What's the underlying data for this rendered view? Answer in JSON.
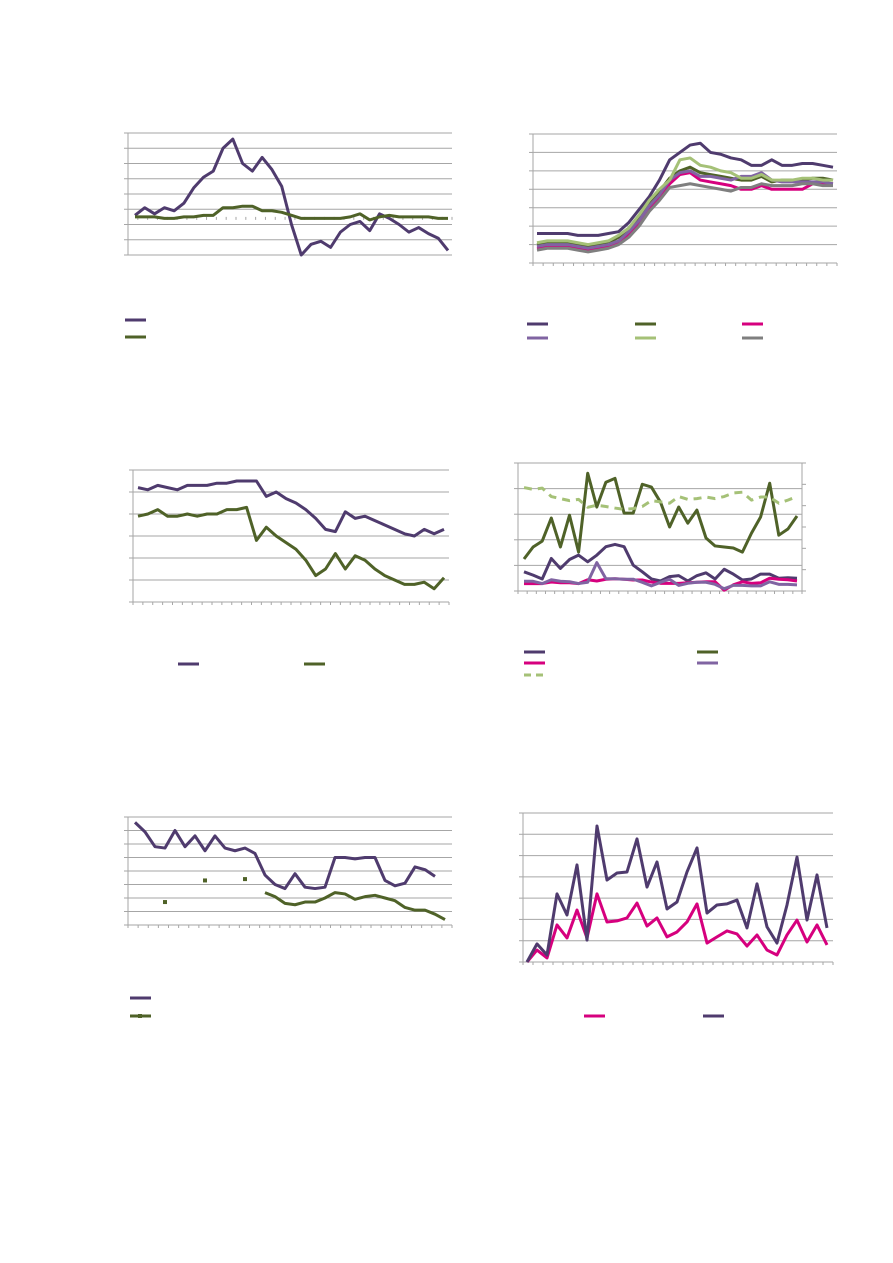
{
  "colors": {
    "purple": "#4f3b6e",
    "dark_green": "#4f6228",
    "magenta": "#d6007e",
    "light_purple": "#8064a2",
    "light_green": "#a5c177",
    "gray": "#7f7f7f",
    "grid": "#a6a6a6"
  },
  "chart_data": [
    {
      "type": "line",
      "ylim": [
        0,
        8
      ],
      "grid": true,
      "legend": "bottom-left",
      "series": [
        {
          "color": "#4f3b6e",
          "values": [
            2.6,
            3.1,
            2.7,
            3.1,
            2.9,
            3.4,
            4.4,
            5.1,
            5.5,
            7.0,
            7.6,
            6.0,
            5.5,
            6.4,
            5.6,
            4.5,
            2.0,
            0,
            0.7,
            0.9,
            0.5,
            1.5,
            2.0,
            2.2,
            1.6,
            2.7,
            2.4,
            2.0,
            1.5,
            1.8,
            1.4,
            1.1,
            0.3
          ]
        },
        {
          "color": "#4f6228",
          "values": [
            2.5,
            2.5,
            2.5,
            2.4,
            2.4,
            2.5,
            2.5,
            2.6,
            2.6,
            3.1,
            3.1,
            3.2,
            3.2,
            2.9,
            2.9,
            2.8,
            2.6,
            2.4,
            2.4,
            2.4,
            2.4,
            2.4,
            2.5,
            2.7,
            2.3,
            2.5,
            2.6,
            2.5,
            2.5,
            2.5,
            2.5,
            2.4,
            2.4
          ]
        }
      ]
    },
    {
      "type": "line",
      "ylim": [
        0,
        70
      ],
      "grid": true,
      "legend": "bottom",
      "series": [
        {
          "color": "#4f3b6e",
          "values": [
            16,
            16,
            16,
            16,
            15,
            15,
            15,
            16,
            17,
            22,
            29,
            36,
            45,
            56,
            60,
            64,
            65,
            60,
            59,
            57,
            56,
            53,
            53,
            56,
            53,
            53,
            54,
            54,
            53,
            52
          ]
        },
        {
          "color": "#4f6228",
          "values": [
            10,
            11,
            11,
            11,
            10,
            9,
            10,
            11,
            14,
            18,
            24,
            32,
            39,
            46,
            50,
            52,
            49,
            48,
            47,
            46,
            45,
            45,
            47,
            44,
            45,
            45,
            45,
            46,
            46,
            45
          ]
        },
        {
          "color": "#d6007e",
          "values": [
            8,
            9,
            9,
            9,
            8,
            7,
            8,
            9,
            11,
            16,
            22,
            30,
            36,
            43,
            48,
            49,
            45,
            44,
            43,
            42,
            40,
            40,
            42,
            40,
            40,
            40,
            40,
            43,
            43,
            43
          ]
        },
        {
          "color": "#8064a2",
          "values": [
            9,
            10,
            10,
            10,
            9,
            8,
            9,
            10,
            12,
            17,
            23,
            31,
            37,
            45,
            49,
            50,
            47,
            47,
            46,
            45,
            47,
            47,
            49,
            45,
            44,
            44,
            44,
            44,
            44,
            43
          ]
        },
        {
          "color": "#a5c177",
          "values": [
            11,
            12,
            12,
            12,
            11,
            10,
            11,
            12,
            15,
            19,
            26,
            34,
            40,
            45,
            56,
            57,
            53,
            52,
            50,
            49,
            46,
            46,
            48,
            45,
            45,
            45,
            46,
            46,
            45,
            45
          ]
        },
        {
          "color": "#7f7f7f",
          "values": [
            7,
            8,
            8,
            8,
            7,
            6,
            7,
            8,
            10,
            14,
            20,
            28,
            34,
            41,
            42,
            43,
            42,
            41,
            40,
            39,
            41,
            41,
            43,
            42,
            42,
            42,
            43,
            43,
            42,
            42
          ]
        }
      ]
    },
    {
      "type": "line",
      "ylim": [
        0,
        60
      ],
      "grid": true,
      "legend": "bottom",
      "series": [
        {
          "color": "#4f3b6e",
          "values": [
            52,
            51,
            53,
            52,
            51,
            53,
            53,
            53,
            54,
            54,
            55,
            55,
            55,
            48,
            50,
            47,
            45,
            42,
            38,
            33,
            32,
            41,
            38,
            39,
            37,
            35,
            33,
            31,
            30,
            33,
            31,
            33
          ]
        },
        {
          "color": "#4f6228",
          "values": [
            39,
            40,
            42,
            39,
            39,
            40,
            39,
            40,
            40,
            42,
            42,
            43,
            28,
            34,
            30,
            27,
            24,
            19,
            12,
            15,
            22,
            15,
            21,
            19,
            15,
            12,
            10,
            8,
            8,
            9,
            6,
            11
          ]
        }
      ]
    },
    {
      "type": "line",
      "ylim": [
        0,
        50
      ],
      "grid": true,
      "legend": "bottom-left",
      "series": [
        {
          "color": "#4f3b6e",
          "values": [
            7.5,
            6.2,
            4.7,
            12.7,
            8.8,
            12.3,
            14.0,
            11.4,
            14.0,
            17.3,
            18.2,
            17.3,
            10.1,
            7.5,
            4.7,
            3.9,
            5.6,
            6.0,
            3.9,
            6.0,
            7.1,
            4.7,
            8.5,
            6.6,
            4.3,
            4.7,
            6.6,
            6.6,
            5.0,
            5.2,
            5.0
          ]
        },
        {
          "color": "#4f6228",
          "values": [
            12.5,
            17.2,
            19.5,
            28.5,
            17.2,
            29.6,
            15.2,
            46,
            32.8,
            42.5,
            44,
            30.4,
            30.4,
            41.7,
            40.6,
            34.7,
            25,
            32.8,
            26.5,
            31.6,
            20.7,
            17.6,
            17.2,
            16.8,
            15.2,
            22.6,
            28.9,
            42.1,
            21.8,
            24.2,
            29.3
          ]
        },
        {
          "color": "#d6007e",
          "values": [
            2.9,
            2.9,
            2.9,
            3.5,
            3.2,
            3.2,
            2.9,
            4.4,
            3.9,
            4.6,
            4.8,
            4.6,
            4.3,
            4.3,
            3.5,
            3.0,
            3.0,
            3.0,
            3.2,
            3.4,
            3.6,
            3.6,
            0.3,
            2.4,
            3.6,
            3.0,
            3.2,
            5.0,
            4.6,
            4.4,
            3.9
          ]
        },
        {
          "color": "#8064a2",
          "values": [
            3.8,
            3.8,
            2.9,
            4.4,
            3.8,
            3.6,
            2.9,
            3.4,
            11.1,
            4.8,
            4.8,
            4.6,
            4.6,
            3.4,
            2.0,
            3.4,
            4.6,
            2.2,
            3.0,
            3.4,
            3.4,
            2.6,
            0.9,
            2.2,
            2.2,
            2.0,
            2.0,
            3.6,
            2.6,
            2.6,
            2.4
          ]
        },
        {
          "color": "#a5c177",
          "dashed": true,
          "values": [
            40.4,
            39.7,
            40.2,
            36.9,
            36.1,
            35.3,
            35.8,
            32.7,
            33.5,
            33.0,
            32.4,
            31.9,
            32.2,
            33.0,
            35.3,
            34.8,
            34.3,
            36.9,
            35.8,
            36.1,
            36.7,
            36.1,
            36.9,
            38.3,
            38.6,
            35.5,
            36.7,
            36.7,
            34.3,
            35.5,
            36.9
          ]
        }
      ]
    },
    {
      "type": "line",
      "ylim": [
        0,
        80
      ],
      "grid": true,
      "legend": "bottom-left",
      "series": [
        {
          "color": "#4f3b6e",
          "values": [
            76,
            69,
            58,
            57,
            70,
            58,
            66,
            55,
            66,
            57,
            55,
            57,
            53,
            37,
            30,
            27,
            38,
            28,
            27,
            28,
            50,
            50,
            49,
            50,
            50,
            33,
            29,
            31,
            43,
            41,
            36,
            null
          ]
        },
        {
          "color": "#4f6228",
          "markers": true,
          "values": [
            null,
            null,
            null,
            17,
            null,
            null,
            null,
            33,
            null,
            null,
            null,
            34,
            null,
            24,
            21,
            16,
            15,
            17,
            17,
            20,
            24,
            23,
            19,
            21,
            22,
            20,
            18,
            13,
            11,
            11,
            8,
            4
          ]
        }
      ]
    },
    {
      "type": "line",
      "ylim": [
        0,
        70
      ],
      "grid": true,
      "legend": "bottom",
      "series": [
        {
          "color": "#d6007e",
          "values": [
            0,
            5.6,
            1.9,
            17.4,
            11.3,
            24.4,
            11.3,
            32,
            18.8,
            19.3,
            20.7,
            27.7,
            16.9,
            20.7,
            11.8,
            14.1,
            18.8,
            27.3,
            8.9,
            11.8,
            14.6,
            13.2,
            7.5,
            12.7,
            5.6,
            3.3,
            12.7,
            19.7,
            9.4,
            17.4,
            8.0
          ]
        },
        {
          "color": "#4f3b6e",
          "values": [
            0,
            8.5,
            3.3,
            32,
            22.1,
            45.6,
            10.3,
            63.9,
            38.5,
            41.8,
            42.3,
            57.8,
            35.2,
            47,
            24.9,
            28.2,
            42.3,
            53.6,
            23,
            26.8,
            27.3,
            29.1,
            16,
            36.7,
            16.5,
            8.9,
            26.8,
            49.3,
            19.7,
            40.9,
            16
          ]
        }
      ]
    }
  ]
}
